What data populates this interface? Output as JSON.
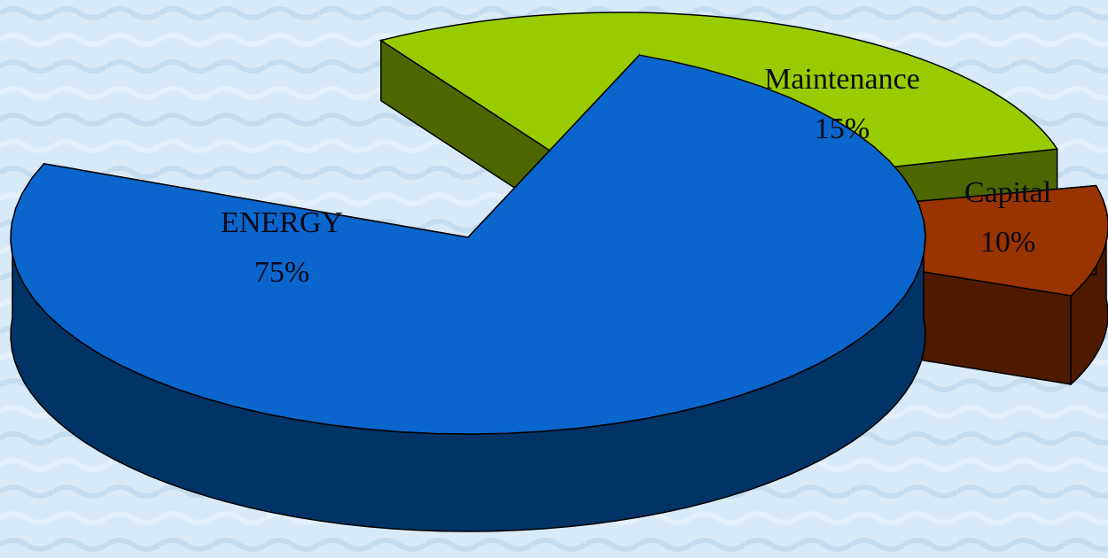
{
  "chart_data": {
    "type": "pie",
    "style": "3d-exploded",
    "background_color": "#d6e8f6",
    "slices": [
      {
        "label": "ENERGY",
        "value": 75,
        "value_label": "75%",
        "color": "#0a66cc",
        "side_color": "#003366"
      },
      {
        "label": "Maintenance",
        "value": 15,
        "value_label": "15%",
        "color": "#99cc00",
        "side_color": "#4d6600"
      },
      {
        "label": "Capital",
        "value": 10,
        "value_label": "10%",
        "color": "#993300",
        "side_color": "#4d1a00"
      }
    ]
  }
}
